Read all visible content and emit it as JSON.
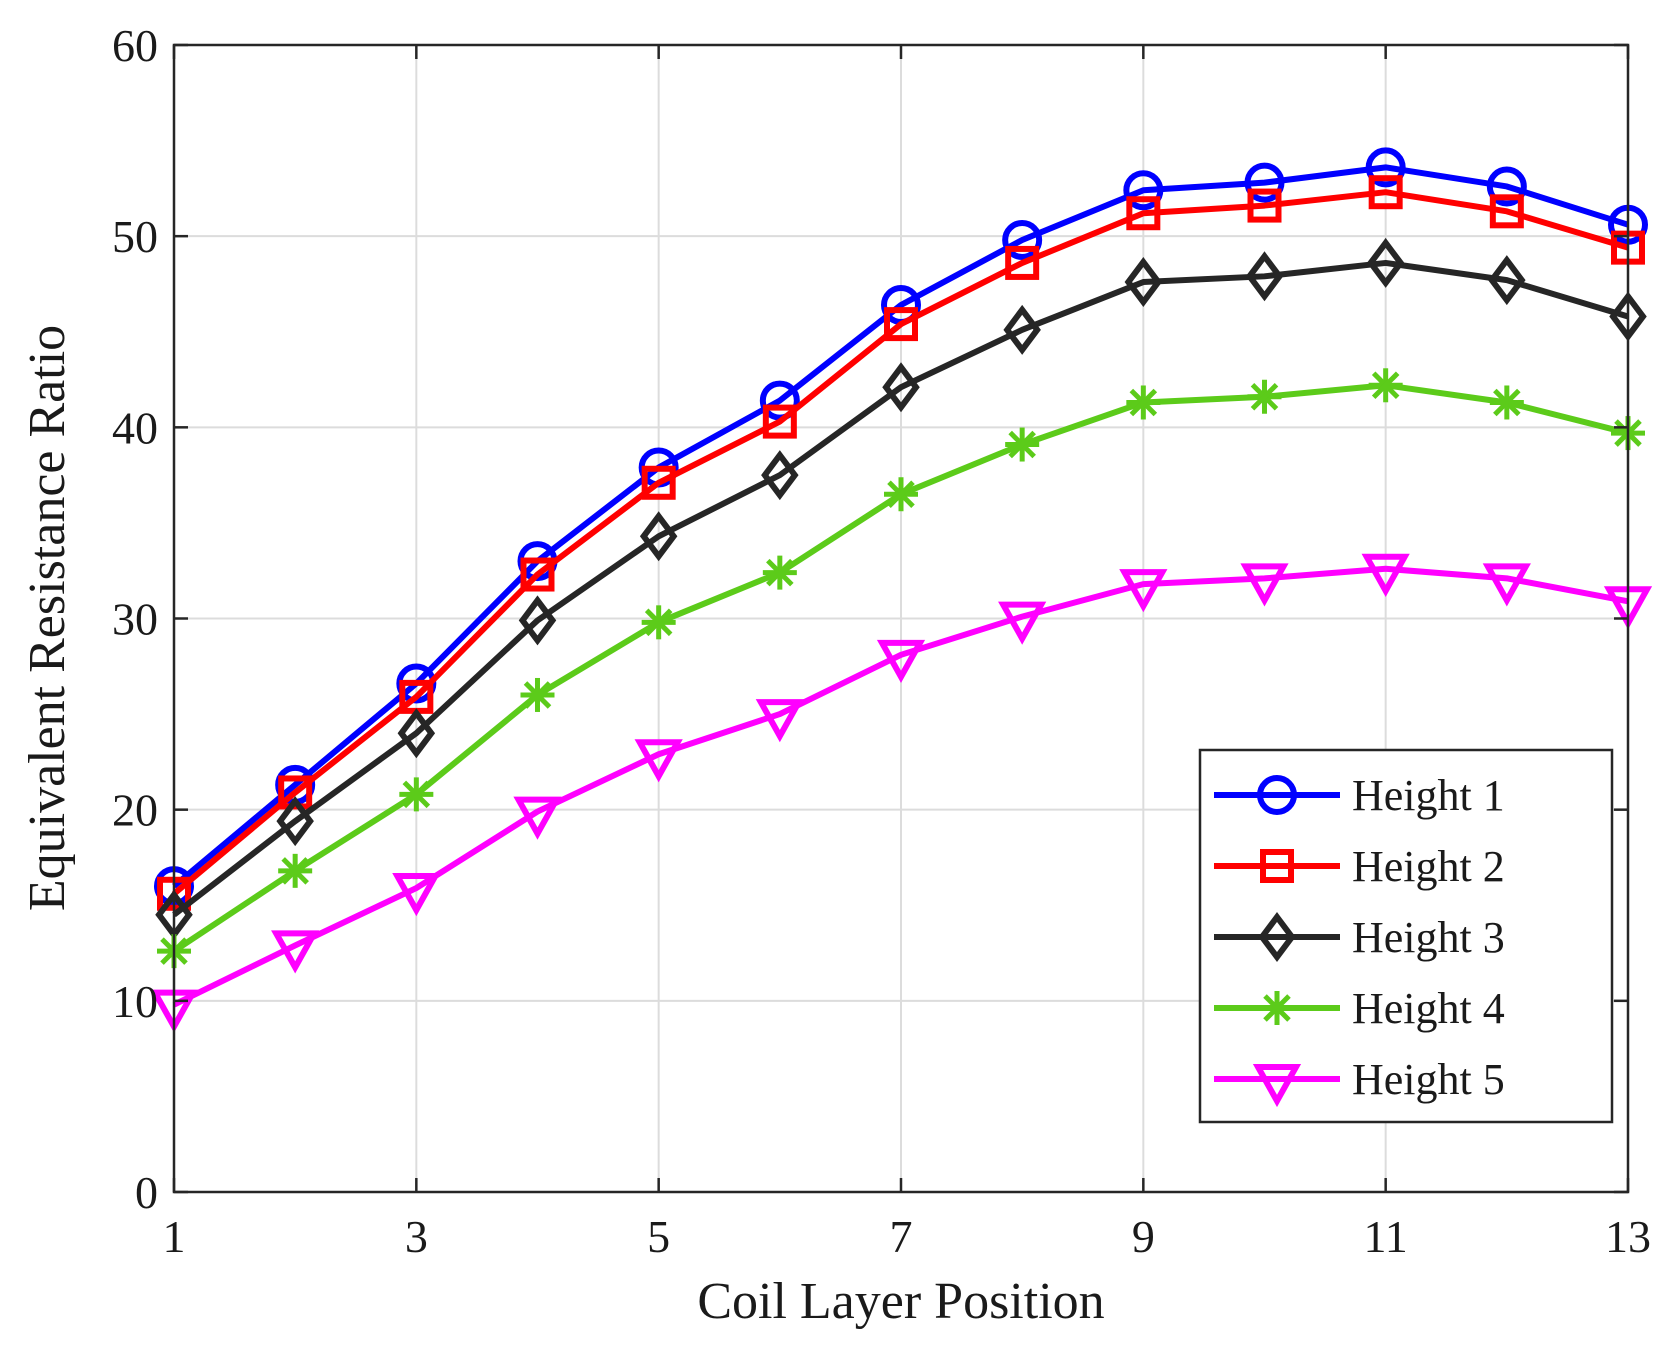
{
  "chart_data": {
    "type": "line",
    "title": "",
    "xlabel": "Coil Layer Position",
    "ylabel": "Equivalent Resistance Ratio",
    "xlim": [
      1,
      13
    ],
    "ylim": [
      0,
      60
    ],
    "xticks": [
      1,
      3,
      5,
      7,
      9,
      11,
      13
    ],
    "yticks": [
      0,
      10,
      20,
      30,
      40,
      50,
      60
    ],
    "grid": true,
    "legend_position": "lower-right",
    "x": [
      1,
      2,
      3,
      4,
      5,
      6,
      7,
      8,
      9,
      10,
      11,
      12,
      13
    ],
    "series": [
      {
        "name": "Height 1",
        "color": "#0000ff",
        "marker": "circle",
        "values": [
          16.0,
          21.3,
          26.6,
          33.0,
          37.9,
          41.4,
          46.4,
          49.8,
          52.4,
          52.8,
          53.6,
          52.6,
          50.6
        ]
      },
      {
        "name": "Height 2",
        "color": "#ff0000",
        "marker": "square",
        "values": [
          15.6,
          20.9,
          25.9,
          32.3,
          37.1,
          40.3,
          45.4,
          48.6,
          51.2,
          51.6,
          52.3,
          51.3,
          49.4
        ]
      },
      {
        "name": "Height 3",
        "color": "#262626",
        "marker": "diamond",
        "values": [
          14.5,
          19.4,
          24.0,
          29.9,
          34.3,
          37.5,
          42.1,
          45.1,
          47.6,
          47.9,
          48.6,
          47.7,
          45.8
        ]
      },
      {
        "name": "Height 4",
        "color": "#5ccb1a",
        "marker": "asterisk",
        "values": [
          12.6,
          16.8,
          20.8,
          26.0,
          29.8,
          32.4,
          36.5,
          39.1,
          41.3,
          41.6,
          42.2,
          41.3,
          39.7
        ]
      },
      {
        "name": "Height 5",
        "color": "#ff00ff",
        "marker": "triangle-down",
        "values": [
          9.8,
          12.9,
          15.9,
          19.9,
          22.9,
          25.0,
          28.1,
          30.1,
          31.8,
          32.1,
          32.6,
          32.1,
          30.9
        ]
      }
    ]
  }
}
